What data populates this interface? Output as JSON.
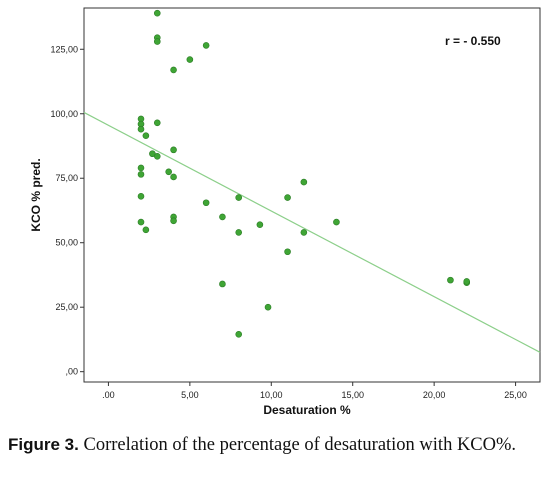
{
  "chart_data": {
    "type": "scatter",
    "xlabel": "Desaturation %",
    "ylabel": "KCO % pred.",
    "xlim": [
      -1.5,
      26.5
    ],
    "ylim": [
      -4,
      141
    ],
    "x_ticks": [
      ".00",
      "5,00",
      "10,00",
      "15,00",
      "20,00",
      "25,00"
    ],
    "x_tick_values": [
      0,
      5,
      10,
      15,
      20,
      25
    ],
    "y_ticks": [
      ",00",
      "25,00",
      "50,00",
      "75,00",
      "100,00",
      "125,00"
    ],
    "y_tick_values": [
      0,
      25,
      50,
      75,
      100,
      125
    ],
    "annotation": "r = - 0.550",
    "point_color": "#3fa535",
    "line_color": "#8ccf8a",
    "fit_line": [
      [
        -1.5,
        100.5
      ],
      [
        26.5,
        7.5
      ]
    ],
    "points": [
      [
        2,
        98
      ],
      [
        2,
        96
      ],
      [
        2,
        94
      ],
      [
        2.3,
        91.5
      ],
      [
        2.7,
        84.5
      ],
      [
        3,
        83.5
      ],
      [
        3,
        96.5
      ],
      [
        3,
        139
      ],
      [
        3,
        129.5
      ],
      [
        3,
        128
      ],
      [
        4,
        117
      ],
      [
        5,
        121
      ],
      [
        6,
        126.5
      ],
      [
        4,
        86
      ],
      [
        3.7,
        77.5
      ],
      [
        4,
        75.5
      ],
      [
        2,
        79
      ],
      [
        2,
        76.5
      ],
      [
        2,
        68
      ],
      [
        2,
        58
      ],
      [
        2.3,
        55
      ],
      [
        4,
        60
      ],
      [
        4,
        58.5
      ],
      [
        6,
        65.5
      ],
      [
        7,
        60
      ],
      [
        8,
        67.5
      ],
      [
        8,
        54
      ],
      [
        9.3,
        57
      ],
      [
        11,
        67.5
      ],
      [
        12,
        73.5
      ],
      [
        12,
        54
      ],
      [
        11,
        46.5
      ],
      [
        14,
        58
      ],
      [
        7,
        34
      ],
      [
        9.8,
        25
      ],
      [
        8,
        14.5
      ],
      [
        21,
        35.5
      ],
      [
        22,
        34.5
      ],
      [
        22,
        35
      ]
    ]
  },
  "caption": {
    "label": "Figure 3.",
    "text": " Correlation of the percentage of desaturation with KCO%."
  }
}
